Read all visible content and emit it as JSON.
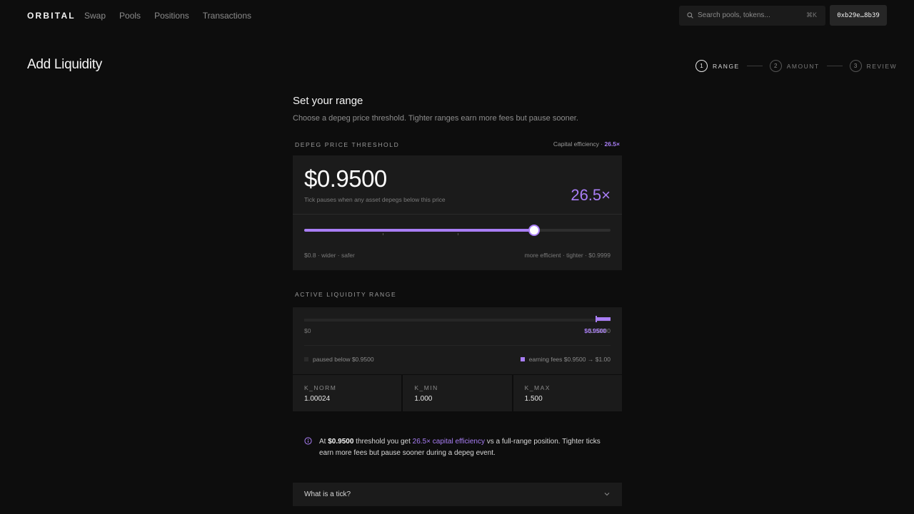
{
  "nav": {
    "logo": "ORBITAL",
    "links": [
      "Swap",
      "Pools",
      "Positions",
      "Transactions"
    ],
    "search_placeholder": "Search pools, tokens...",
    "search_shortcut": "⌘K",
    "wallet": "0xb29e…8b39"
  },
  "header": {
    "title": "Add Liquidity",
    "steps": [
      {
        "num": "1",
        "label": "RANGE",
        "active": true
      },
      {
        "num": "2",
        "label": "AMOUNT",
        "active": false
      },
      {
        "num": "3",
        "label": "REVIEW",
        "active": false
      }
    ]
  },
  "range": {
    "heading": "Set your range",
    "subheading": "Choose a depeg price threshold. Tighter ranges earn more fees but pause sooner."
  },
  "threshold": {
    "label": "DEPEG PRICE THRESHOLD",
    "cap_eff_prefix": "Capital efficiency · ",
    "cap_eff_value": "26.5×",
    "price": "$0.9500",
    "price_note": "Tick pauses when any asset depegs below this price",
    "efficiency": "26.5×",
    "slider_value": 0.95,
    "slider_min": 0.8,
    "slider_max": 0.9999,
    "range_low_label": "$0.8 · wider · safer",
    "range_high_label": "more efficient · tighter · $0.9999"
  },
  "active_range": {
    "label": "ACTIVE LIQUIDITY RANGE",
    "low": "$0",
    "high": "$1.0000",
    "marker_label": "$0.9500",
    "threshold": 0.95,
    "legend_paused": "paused below $0.9500",
    "legend_earning": "earning fees $0.9500 → $1.00",
    "k_values": [
      {
        "label": "K_NORM",
        "value": "1.00024"
      },
      {
        "label": "K_MIN",
        "value": "1.000"
      },
      {
        "label": "K_MAX",
        "value": "1.500"
      }
    ]
  },
  "info": {
    "text_prefix": "At ",
    "price": "$0.9500",
    "text_mid": " threshold you get ",
    "highlight": "26.5× capital efficiency",
    "text_suffix": " vs a full-range position. Tighter ticks earn more fees but pause sooner during a depeg event."
  },
  "faq": {
    "question": "What is a tick?"
  },
  "colors": {
    "accent": "#a97ef5",
    "background": "#0d0d0d",
    "card": "#1b1b1b"
  }
}
